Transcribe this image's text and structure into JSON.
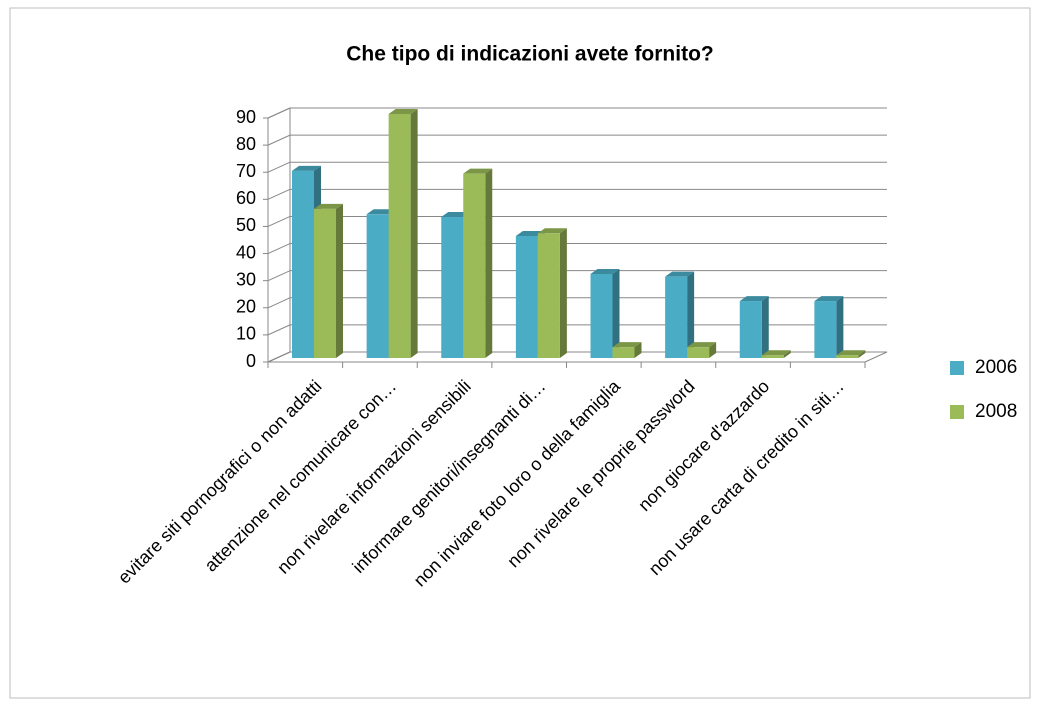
{
  "chart_data": {
    "type": "bar3d",
    "title": "Che tipo di indicazioni avete fornito?",
    "categories": [
      "evitare siti pornografici o non adatti",
      "attenzione nel comunicare con…",
      "non rivelare informazioni sensibili",
      "informare genitori/insegnanti di…",
      "non inviare foto loro o della famiglia",
      "non rivelare le proprie password",
      "non giocare d'azzardo",
      "non usare carta di credito in siti…"
    ],
    "series": [
      {
        "name": "2006",
        "color": "#4bacc6",
        "values": [
          69,
          53,
          52,
          45,
          31,
          30,
          21,
          21
        ]
      },
      {
        "name": "2008",
        "color": "#9bbb59",
        "values": [
          55,
          90,
          68,
          46,
          4,
          4,
          1,
          1
        ]
      }
    ],
    "ylim": [
      0,
      90
    ],
    "yticks": [
      0,
      10,
      20,
      30,
      40,
      50,
      60,
      70,
      80,
      90
    ],
    "grid": true,
    "legend": "right"
  }
}
